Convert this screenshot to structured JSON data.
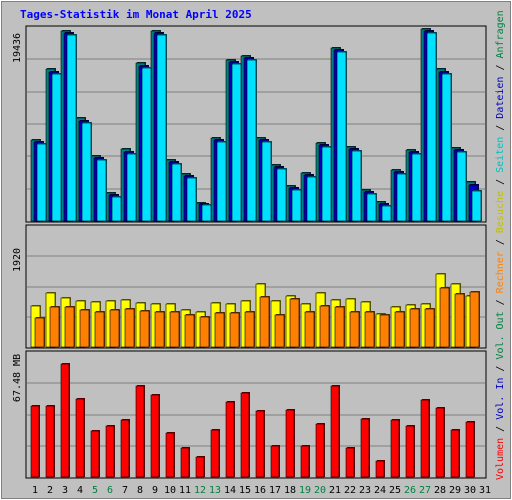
{
  "chart_data": {
    "type": "bar",
    "title": "Tages-Statistik im Monat April 2025",
    "categories": [
      "1",
      "2",
      "3",
      "4",
      "5",
      "6",
      "7",
      "8",
      "9",
      "10",
      "11",
      "12",
      "13",
      "14",
      "15",
      "16",
      "17",
      "18",
      "19",
      "20",
      "21",
      "22",
      "23",
      "24",
      "25",
      "26",
      "27",
      "28",
      "29",
      "30",
      "31"
    ],
    "weekend_days": [
      "5",
      "6",
      "12",
      "13",
      "19",
      "20",
      "26",
      "27"
    ],
    "right_labels": [
      {
        "text": "Anfragen",
        "color": "#008040"
      },
      {
        "text": "Dateien",
        "color": "#0000c0"
      },
      {
        "text": "Seiten",
        "color": "#00c0c0"
      },
      {
        "text": "Besuche",
        "color": "#c0c000"
      },
      {
        "text": "Rechner",
        "color": "#ff8000"
      },
      {
        "text": "Vol. Out",
        "color": "#008040"
      },
      {
        "text": "Vol. In",
        "color": "#0000c0"
      },
      {
        "text": "Volumen",
        "color": "#ff0000"
      }
    ],
    "panels": [
      {
        "id": "top",
        "ymax_label": "19436",
        "ylim": [
          0,
          19436
        ],
        "series": [
          {
            "name": "Anfragen",
            "color": "#008080",
            "values": [
              8200,
              15400,
              19200,
              10400,
              6600,
              2800,
              7300,
              16000,
              19200,
              6200,
              4800,
              1800,
              8400,
              16300,
              16700,
              8400,
              5700,
              3500,
              4900,
              7900,
              17500,
              7500,
              3100,
              1900,
              5200,
              7200,
              19400,
              15400,
              7400,
              3900
            ]
          },
          {
            "name": "Dateien",
            "color": "#0000c0",
            "values": [
              8000,
              15100,
              19000,
              10100,
              6400,
              2600,
              7000,
              15700,
              19000,
              6000,
              4600,
              1700,
              8200,
              16100,
              16500,
              8200,
              5500,
              3300,
              4700,
              7700,
              17300,
              7300,
              2900,
              1700,
              5000,
              7000,
              19200,
              15100,
              7200,
              3600
            ]
          },
          {
            "name": "Seiten",
            "color": "#00e0ff",
            "values": [
              7800,
              14900,
              18800,
              9900,
              6200,
              2400,
              6800,
              15500,
              18800,
              5800,
              4400,
              1600,
              8000,
              15900,
              16300,
              8000,
              5300,
              3100,
              4500,
              7500,
              17100,
              7100,
              2700,
              1500,
              4800,
              6800,
              19000,
              14900,
              7000,
              3000
            ]
          }
        ]
      },
      {
        "id": "middle",
        "ymax_label": "1920",
        "ylim": [
          0,
          1920
        ],
        "series": [
          {
            "name": "Besuche",
            "color": "#ffff00",
            "values": [
              660,
              870,
              790,
              740,
              730,
              750,
              760,
              710,
              690,
              690,
              590,
              560,
              710,
              690,
              740,
              1010,
              740,
              820,
              700,
              870,
              760,
              770,
              730,
              540,
              640,
              670,
              700,
              1170,
              1020,
              830
            ]
          },
          {
            "name": "Rechner",
            "color": "#ff8000",
            "values": [
              470,
              640,
              640,
              600,
              570,
              600,
              610,
              580,
              560,
              560,
              510,
              490,
              550,
              550,
              570,
              810,
              520,
              770,
              560,
              660,
              640,
              560,
              560,
              510,
              570,
              610,
              620,
              950,
              850,
              890
            ]
          }
        ]
      },
      {
        "id": "bottom",
        "ymax_label": "67.48 MB",
        "ylim": [
          0,
          67.48
        ],
        "series": [
          {
            "name": "Volumen",
            "color": "#ff0000",
            "values": [
              39,
              39,
              62,
              43,
              25,
              28,
              31,
              50,
              45,
              24,
              16,
              11,
              26,
              41,
              46,
              36,
              17,
              37,
              17,
              29,
              50,
              16,
              32,
              9,
              31,
              28,
              42,
              38,
              26,
              30
            ]
          }
        ]
      }
    ]
  }
}
